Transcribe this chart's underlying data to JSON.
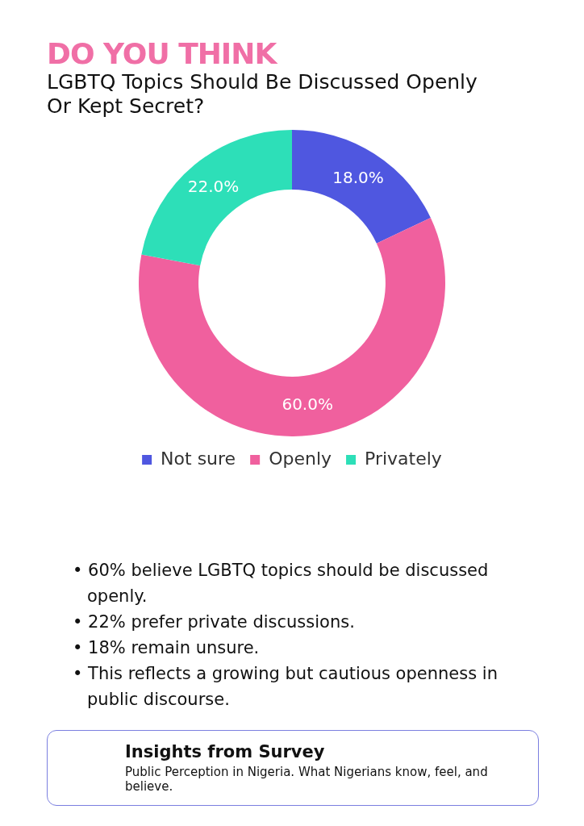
{
  "chart_data": {
    "type": "donut",
    "title": "DO YOU THINK",
    "subtitle": "LGBTQ Topics Should Be Discussed Openly Or Kept Secret?",
    "categories": [
      "Not sure",
      "Openly",
      "Privately"
    ],
    "values": [
      18,
      60,
      22
    ],
    "colors": [
      "#4f57e0",
      "#f0609e",
      "#2ddfb8"
    ],
    "value_labels": [
      "18.0%",
      "60.0%",
      "22.0%"
    ],
    "legend": "bottom",
    "annotations": [
      "• 60% believe LGBTQ topics should be discussed openly.",
      "• 22% prefer private discussions.",
      "• 18% remain unsure.",
      "• This reflects a growing but cautious openness in public discourse.",
      "Insights from Survey",
      "Public Perception in Nigeria. What Nigerians know, feel, and believe."
    ]
  }
}
